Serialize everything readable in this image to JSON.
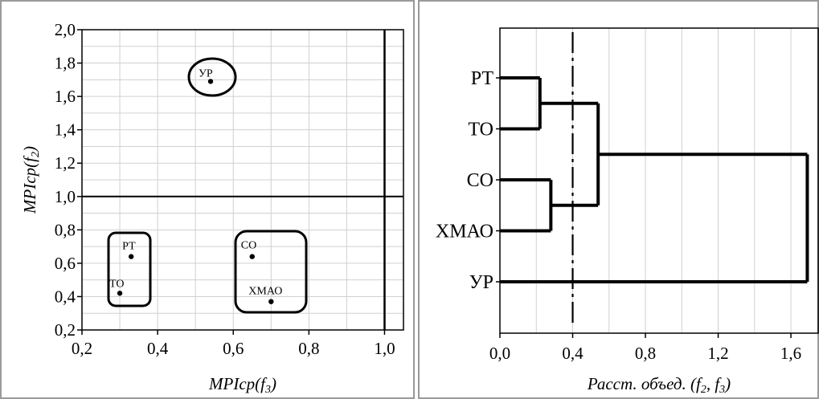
{
  "chart_data": [
    {
      "type": "scatter",
      "xlabel_main": "MPIcp(f",
      "xlabel_sub": "3",
      "xlabel_tail": ")",
      "ylabel_main": "MPIcp(f",
      "ylabel_sub": "2",
      "ylabel_tail": ")",
      "xlim": [
        0.2,
        1.05
      ],
      "ylim": [
        0.2,
        2.0
      ],
      "x_ticks": [
        "0,2",
        "0,4",
        "0,6",
        "0,8",
        "1,0"
      ],
      "x_tick_values": [
        0.2,
        0.4,
        0.6,
        0.8,
        1.0
      ],
      "y_ticks": [
        "2,0",
        "1,8",
        "1,6",
        "1,4",
        "1,2",
        "1,0",
        "0,8",
        "0,6",
        "0,4",
        "0,2"
      ],
      "y_tick_values": [
        2.0,
        1.8,
        1.6,
        1.4,
        1.2,
        1.0,
        0.8,
        0.6,
        0.4,
        0.2
      ],
      "reference_lines": {
        "x": 1.0,
        "y": 1.0
      },
      "points": [
        {
          "label": "УР",
          "x": 0.54,
          "y": 1.69
        },
        {
          "label": "РТ",
          "x": 0.33,
          "y": 0.64
        },
        {
          "label": "ТО",
          "x": 0.3,
          "y": 0.42
        },
        {
          "label": "СО",
          "x": 0.65,
          "y": 0.64
        },
        {
          "label": "ХМАО",
          "x": 0.7,
          "y": 0.37
        }
      ],
      "grid": true
    },
    {
      "type": "dendrogram",
      "xlabel_main": "Расст. объед. (f",
      "xlabel_sub1": "2",
      "xlabel_mid": ", f",
      "xlabel_sub2": "3",
      "xlabel_tail": ")",
      "xlim": [
        0.0,
        1.75
      ],
      "x_ticks": [
        "0,0",
        "0,4",
        "0,8",
        "1,2",
        "1,6"
      ],
      "x_tick_values": [
        0.0,
        0.4,
        0.8,
        1.2,
        1.6
      ],
      "leaves": [
        "РТ",
        "ТО",
        "СО",
        "ХМАО",
        "УР"
      ],
      "merges": [
        {
          "a": "РТ",
          "b": "ТО",
          "height": 0.22
        },
        {
          "a": "СО",
          "b": "ХМАО",
          "height": 0.28
        },
        {
          "a": "РТ+ТО",
          "b": "СО+ХМАО",
          "height": 0.54
        },
        {
          "a": "РТ+ТО+СО+ХМАО",
          "b": "УР",
          "height": 1.69
        }
      ],
      "cut_line": 0.4,
      "grid": true
    }
  ]
}
